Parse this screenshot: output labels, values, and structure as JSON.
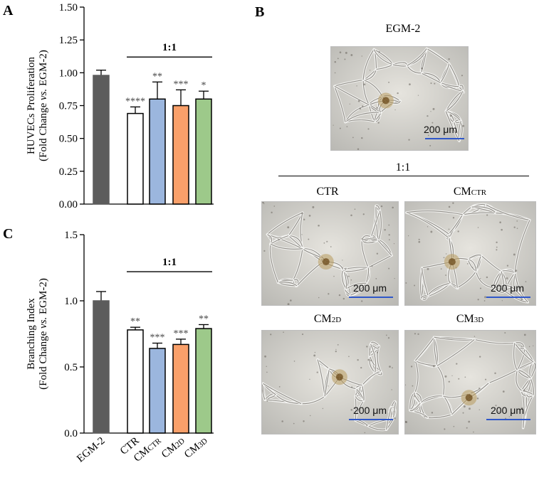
{
  "colors": {
    "egm2": "#5c5c5c",
    "ctr": "#ffffff",
    "cm_ctr": "#9bb6de",
    "cm_2d": "#f9a06a",
    "cm_3d": "#9dc98a",
    "scale_bar": "#2f57c9"
  },
  "panel_letters": {
    "a": "A",
    "b": "B",
    "c": "C"
  },
  "bracket_label": "1:1",
  "xaxis_categories": [
    {
      "base": "EGM-2",
      "sub": ""
    },
    {
      "base": "CTR",
      "sub": ""
    },
    {
      "base": "CM",
      "sub": "CTR"
    },
    {
      "base": "CM",
      "sub": "2D"
    },
    {
      "base": "CM",
      "sub": "3D"
    }
  ],
  "chart_data": [
    {
      "type": "bar",
      "panel": "A",
      "ylabel_line1": "HUVECs Proliferation",
      "ylabel_line2_pre": "(Fold Change ",
      "ylabel_line2_it": "vs.",
      "ylabel_line2_post": " EGM-2)",
      "ylim": [
        0,
        1.5
      ],
      "yticks": [
        "0.00",
        "0.25",
        "0.50",
        "0.75",
        "1.00",
        "1.25",
        "1.50"
      ],
      "ytick_values": [
        0,
        0.25,
        0.5,
        0.75,
        1.0,
        1.25,
        1.5
      ],
      "categories": [
        "EGM-2",
        "CTR",
        "CMCTR",
        "CM2D",
        "CM3D"
      ],
      "values": [
        0.98,
        0.69,
        0.8,
        0.75,
        0.8
      ],
      "errors": [
        0.04,
        0.05,
        0.13,
        0.12,
        0.06
      ],
      "significance": [
        "",
        "****",
        "**",
        "***",
        "*"
      ]
    },
    {
      "type": "bar",
      "panel": "C",
      "ylabel_line1": "Branching Index",
      "ylabel_line2_pre": "(Fold Change ",
      "ylabel_line2_it": "vs.",
      "ylabel_line2_post": " EGM-2)",
      "ylim": [
        0,
        1.5
      ],
      "yticks": [
        "0.0",
        "0.5",
        "1.0",
        "1.5"
      ],
      "ytick_values": [
        0,
        0.5,
        1.0,
        1.5
      ],
      "categories": [
        "EGM-2",
        "CTR",
        "CMCTR",
        "CM2D",
        "CM3D"
      ],
      "values": [
        1.0,
        0.78,
        0.64,
        0.67,
        0.79
      ],
      "errors": [
        0.07,
        0.02,
        0.04,
        0.04,
        0.03
      ],
      "significance": [
        "",
        "**",
        "***",
        "***",
        "**"
      ]
    }
  ],
  "micrographs": {
    "egm2_title": "EGM-2",
    "ratio_label": "1:1",
    "scale_text": "200 μm",
    "ctr_title": "CTR",
    "cmctr_title_base": "CM",
    "cmctr_title_sub": "CTR",
    "cm2d_title_base": "CM",
    "cm2d_title_sub": "2D",
    "cm3d_title_base": "CM",
    "cm3d_title_sub": "3D"
  }
}
